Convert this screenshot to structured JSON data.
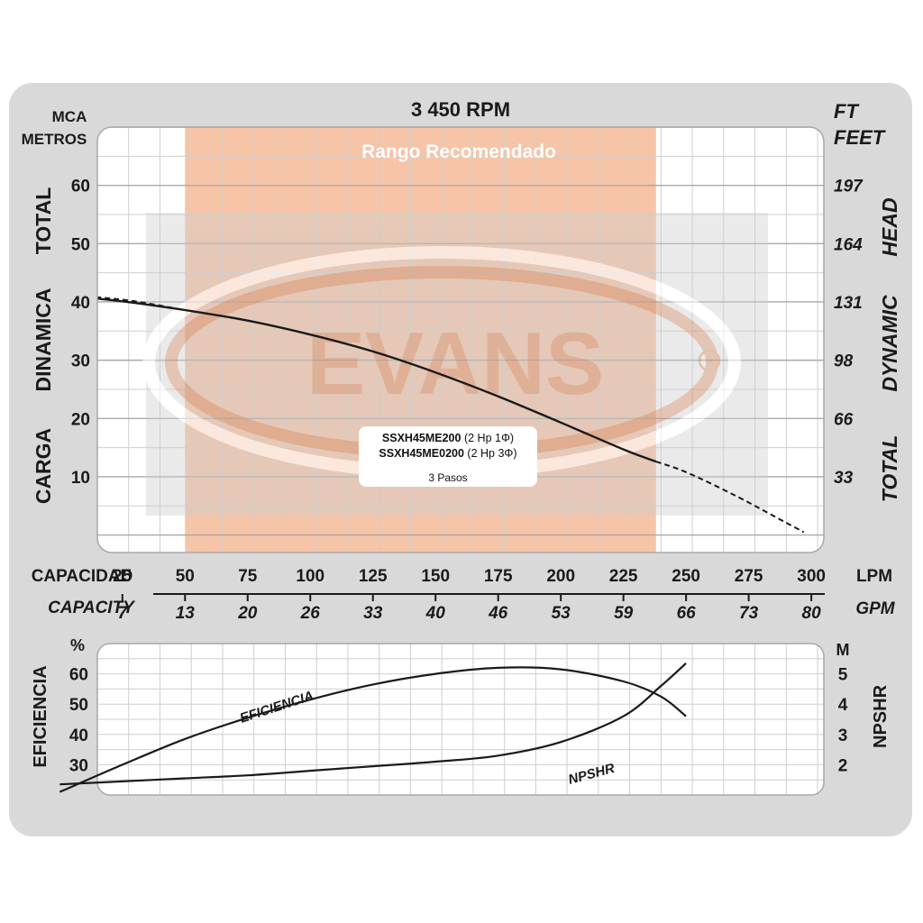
{
  "header": {
    "rpm": "3 450 RPM",
    "left_unit_1": "MCA",
    "left_unit_2": "METROS",
    "right_unit_1": "FT",
    "right_unit_2": "FEET"
  },
  "range_label": "Rango Recomendado",
  "watermark": "EVANS",
  "legend": {
    "model_1": "SSXH45ME200",
    "spec_1": "(2 Hp  1Φ)",
    "model_2": "SSXH45ME0200",
    "spec_2": "(2 Hp  3Φ)",
    "steps": "3 Pasos"
  },
  "capacity_axis": {
    "label_es": "CAPACIDAD",
    "label_en": "CAPACITY",
    "unit_lpm": "LPM",
    "unit_gpm": "GPM",
    "lpm_ticks": [
      "25",
      "50",
      "75",
      "100",
      "125",
      "150",
      "175",
      "200",
      "225",
      "250",
      "275",
      "300"
    ],
    "gpm_ticks": [
      "7",
      "13",
      "20",
      "26",
      "33",
      "40",
      "46",
      "53",
      "59",
      "66",
      "73",
      "80"
    ]
  },
  "colors": {
    "panel": "#d9d9d9",
    "plot_bg": "#ffffff",
    "grid": "#bdbdbd",
    "recommended_range": "#f6c4a6",
    "curve": "#1a1a1a"
  },
  "chart_data": [
    {
      "type": "line",
      "x_unit": "LPM",
      "xlim": [
        15,
        305
      ],
      "ylim": [
        -3,
        70
      ],
      "xlabel": "CAPACIDAD",
      "ylabel_left": [
        "CARGA",
        "DINAMICA",
        "TOTAL"
      ],
      "ylabel_right": [
        "TOTAL",
        "DYNAMIC",
        "HEAD"
      ],
      "y_ticks_left": [
        "10",
        "20",
        "30",
        "40",
        "50",
        "60"
      ],
      "y_ticks_right": [
        "33",
        "66",
        "98",
        "131",
        "164",
        "197"
      ],
      "recommended_range_lpm": [
        50,
        238
      ],
      "series": [
        {
          "x": [
            0,
            25,
            50,
            75,
            100,
            125,
            150,
            175,
            200,
            225,
            238
          ],
          "y": [
            41.2,
            40.1,
            38.6,
            36.8,
            34.4,
            31.5,
            27.9,
            23.8,
            19.3,
            14.7,
            12.6
          ],
          "style": "solid"
        },
        {
          "x": [
            0,
            15,
            30,
            50
          ],
          "y": [
            41.2,
            40.8,
            40.1,
            38.6
          ],
          "style": "dashed"
        },
        {
          "x": [
            238,
            250,
            270,
            290,
            297
          ],
          "y": [
            12.6,
            10.8,
            6.7,
            2.1,
            0.5
          ],
          "style": "dashed"
        }
      ]
    },
    {
      "type": "line",
      "x_unit": "LPM",
      "xlim": [
        15,
        305
      ],
      "ylim": [
        20,
        70
      ],
      "ylabel_left": "EFICIENCIA",
      "ylabel_left_unit": "%",
      "ylabel_right": "NPSHR",
      "ylabel_right_unit": "M",
      "y_ticks_left": [
        "30",
        "40",
        "50",
        "60"
      ],
      "y_ticks_right": [
        "2",
        "3",
        "4",
        "5"
      ],
      "series": [
        {
          "name": "EFICIENCIA",
          "x": [
            0,
            25,
            50,
            75,
            100,
            125,
            150,
            175,
            200,
            225,
            240,
            250
          ],
          "y": [
            21,
            30,
            38.5,
            45.5,
            51.5,
            56.5,
            60,
            62,
            61.5,
            57.5,
            52.5,
            46
          ]
        },
        {
          "name": "NPSHR",
          "x": [
            0,
            25,
            50,
            75,
            100,
            125,
            150,
            175,
            200,
            225,
            240,
            250
          ],
          "y": [
            1.35,
            1.45,
            1.55,
            1.65,
            1.8,
            1.95,
            2.1,
            2.3,
            2.75,
            3.6,
            4.6,
            5.35
          ]
        }
      ]
    }
  ]
}
